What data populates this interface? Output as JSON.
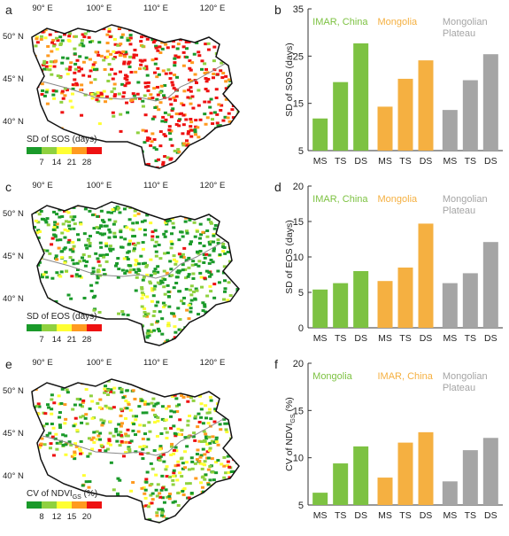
{
  "maps": [
    {
      "panel": "a",
      "legend_title": "SD of SOS (days)",
      "legend_ticks": [
        "7",
        "14",
        "21",
        "28"
      ],
      "lon_labels": [
        "90° E",
        "100° E",
        "110° E",
        "120° E"
      ],
      "lat_labels": [
        "50° N",
        "45° N",
        "40° N"
      ],
      "dominant": "red"
    },
    {
      "panel": "c",
      "legend_title": "SD of EOS (days)",
      "legend_ticks": [
        "7",
        "14",
        "21",
        "28"
      ],
      "lon_labels": [
        "90° E",
        "100° E",
        "110° E",
        "120° E"
      ],
      "lat_labels": [
        "50° N",
        "45° N",
        "40° N"
      ],
      "dominant": "green"
    },
    {
      "panel": "e",
      "legend_title": "CV of NDVI",
      "legend_title_sub": "GS",
      "legend_title_end": " (%)",
      "legend_ticks": [
        "8",
        "12",
        "15",
        "20"
      ],
      "lon_labels": [
        "90° E",
        "100° E",
        "110° E",
        "120° E"
      ],
      "lat_labels": [
        "50° N",
        "45° N",
        "40° N"
      ],
      "dominant": "mixed"
    }
  ],
  "legend_colors": [
    "#1a9a2a",
    "#8fd13f",
    "#ffff33",
    "#ff9a1f",
    "#ee1111"
  ],
  "chart_data": [
    {
      "panel": "b",
      "type": "bar",
      "ylabel": "SD of SOS (days)",
      "ylim": [
        5,
        35
      ],
      "yticks": [
        "5",
        "15",
        "25",
        "35"
      ],
      "ytick_values": [
        5,
        15,
        25,
        35
      ],
      "categories": [
        "MS",
        "TS",
        "DS"
      ],
      "series": [
        {
          "name": "IMAR, China",
          "color": "#7dc242",
          "values": [
            11.8,
            19.5,
            27.7
          ]
        },
        {
          "name": "Mongolia",
          "color": "#f5b041",
          "values": [
            14.3,
            20.2,
            24.1
          ]
        },
        {
          "name": "Mongolian Plateau",
          "color": "#a5a5a5",
          "values": [
            13.6,
            19.9,
            25.4
          ]
        }
      ]
    },
    {
      "panel": "d",
      "type": "bar",
      "ylabel": "SD of EOS (days)",
      "ylim": [
        0,
        20
      ],
      "yticks": [
        "0",
        "5",
        "10",
        "15",
        "20"
      ],
      "ytick_values": [
        0,
        5,
        10,
        15,
        20
      ],
      "categories": [
        "MS",
        "TS",
        "DS"
      ],
      "series": [
        {
          "name": "IMAR, China",
          "color": "#7dc242",
          "values": [
            5.4,
            6.3,
            8.0
          ]
        },
        {
          "name": "Mongolia",
          "color": "#f5b041",
          "values": [
            6.6,
            8.5,
            14.7
          ]
        },
        {
          "name": "Mongolian Plateau",
          "color": "#a5a5a5",
          "values": [
            6.3,
            7.7,
            12.1
          ]
        }
      ]
    },
    {
      "panel": "f",
      "type": "bar",
      "ylabel": "CV of NDVI",
      "ylabel_sub": "GS",
      "ylabel_end": " (%)",
      "ylim": [
        5,
        20
      ],
      "yticks": [
        "5",
        "10",
        "15",
        "20"
      ],
      "ytick_values": [
        5,
        10,
        15,
        20
      ],
      "categories": [
        "MS",
        "TS",
        "DS"
      ],
      "series": [
        {
          "name": "Mongolia",
          "color": "#7dc242",
          "values": [
            6.3,
            9.4,
            11.2
          ]
        },
        {
          "name": "IMAR, China",
          "color": "#f5b041",
          "values": [
            7.9,
            11.6,
            12.7
          ]
        },
        {
          "name": "Mongolian Plateau",
          "color": "#a5a5a5",
          "values": [
            7.5,
            10.8,
            12.1
          ]
        }
      ]
    }
  ]
}
